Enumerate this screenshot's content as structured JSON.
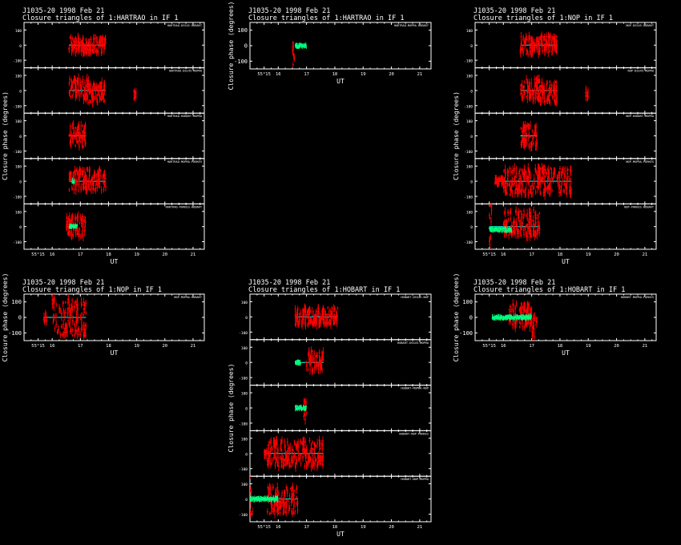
{
  "colors": {
    "background": "#000000",
    "axes": "#ffffff",
    "points": "#ff0000",
    "model": "#00ff7f",
    "zero_line": "#00ffff"
  },
  "chart_data": [
    {
      "id": "hartrao-1",
      "type": "scatter",
      "title_line1": "J1035-20  1998 Feb 21",
      "title_line2": "Closure triangles of 1:HARTRAO in IF 1",
      "xlabel": "UT",
      "ylabel": "Closure phase  (degrees)",
      "x_ticks": [
        {
          "pos": 15.5,
          "label": "55°15"
        },
        {
          "pos": 16,
          "label": "16"
        },
        {
          "pos": 17,
          "label": "17"
        },
        {
          "pos": 18,
          "label": "18"
        },
        {
          "pos": 19,
          "label": "19"
        },
        {
          "pos": 20,
          "label": "20"
        },
        {
          "pos": 21,
          "label": "21"
        }
      ],
      "xlim": [
        15.0,
        21.4
      ],
      "ylim": [
        -150,
        150
      ],
      "y_ticks": [
        100,
        0,
        -100
      ],
      "grid": false,
      "panels": [
        {
          "label": "HARTRAO-DSS45-HOBART",
          "segments": [
            [
              16.6,
              17.0,
              0.0,
              60
            ],
            [
              17.0,
              17.3,
              -5.0,
              50
            ],
            [
              17.3,
              17.9,
              5.0,
              55
            ]
          ],
          "model_segments": [],
          "zero_line": [
            16.6,
            17.9
          ]
        },
        {
          "label": "HARTRAO-DSS45-MOPRA",
          "segments": [
            [
              16.6,
              17.3,
              10.0,
              70
            ],
            [
              17.3,
              17.9,
              -10.0,
              70
            ],
            [
              18.9,
              19.0,
              -30.0,
              40
            ]
          ],
          "model_segments": [],
          "zero_line": [
            16.6,
            17.9
          ]
        },
        {
          "label": "HARTRAO-HOBART-MOPRA",
          "segments": [
            [
              16.6,
              17.2,
              0.0,
              75
            ]
          ],
          "model_segments": [],
          "zero_line": [
            16.6,
            17.2
          ]
        },
        {
          "label": "HARTRAO-MOPRA-PARKES",
          "segments": [
            [
              16.6,
              17.9,
              10.0,
              70
            ]
          ],
          "model_segments": [
            [
              16.7,
              16.8,
              0.0,
              12
            ]
          ],
          "zero_line": [
            16.6,
            17.9
          ]
        },
        {
          "label": "HARTRAO-PARKES-HOBART",
          "segments": [
            [
              16.5,
              17.2,
              0.0,
              70
            ]
          ],
          "model_segments": [
            [
              16.6,
              16.9,
              0.0,
              12
            ]
          ],
          "zero_line": [
            16.6,
            16.9
          ]
        }
      ]
    },
    {
      "id": "hartrao-2",
      "type": "scatter",
      "title_line1": "J1035-20  1998 Feb 21",
      "title_line2": "Closure triangles of 1:HARTRAO in IF 1",
      "xlabel": "UT",
      "ylabel": "Closure phase  (degrees)",
      "x_ticks": [
        {
          "pos": 15.5,
          "label": "55°15"
        },
        {
          "pos": 16,
          "label": "16"
        },
        {
          "pos": 17,
          "label": "17"
        },
        {
          "pos": 18,
          "label": "18"
        },
        {
          "pos": 19,
          "label": "19"
        },
        {
          "pos": 20,
          "label": "20"
        },
        {
          "pos": 21,
          "label": "21"
        }
      ],
      "xlim": [
        15.0,
        21.4
      ],
      "ylim": [
        -150,
        150
      ],
      "y_ticks": [
        100,
        0,
        -100
      ],
      "grid": false,
      "panels": [
        {
          "label": "HARTRAO-MOPRA-HOBART",
          "segments": [
            [
              16.5,
              16.6,
              -60.0,
              80
            ]
          ],
          "model_segments": [
            [
              16.6,
              17.0,
              0.0,
              12
            ]
          ],
          "zero_line": [
            16.6,
            17.0
          ]
        }
      ]
    },
    {
      "id": "nop-1",
      "type": "scatter",
      "title_line1": "J1035-20  1998 Feb 21",
      "title_line2": "Closure triangles of 1:NOP in IF 1",
      "xlabel": "UT",
      "ylabel": "Closure phase  (degrees)",
      "x_ticks": [
        {
          "pos": 15.5,
          "label": "55°15"
        },
        {
          "pos": 16,
          "label": "16"
        },
        {
          "pos": 17,
          "label": "17"
        },
        {
          "pos": 18,
          "label": "18"
        },
        {
          "pos": 19,
          "label": "19"
        },
        {
          "pos": 20,
          "label": "20"
        },
        {
          "pos": 21,
          "label": "21"
        }
      ],
      "xlim": [
        15.0,
        21.4
      ],
      "ylim": [
        -150,
        150
      ],
      "y_ticks": [
        100,
        0,
        -100
      ],
      "grid": false,
      "panels": [
        {
          "label": "NOP-DSS45-HOBART",
          "segments": [
            [
              16.6,
              17.0,
              0.0,
              60
            ],
            [
              17.0,
              17.3,
              -5.0,
              50
            ],
            [
              17.3,
              17.9,
              5.0,
              55
            ]
          ],
          "model_segments": [],
          "zero_line": [
            16.6,
            17.9
          ]
        },
        {
          "label": "NOP-DSS45-MOPRA",
          "segments": [
            [
              16.6,
              17.3,
              10.0,
              70
            ],
            [
              17.3,
              17.9,
              -10.0,
              70
            ],
            [
              18.9,
              19.0,
              -30.0,
              40
            ]
          ],
          "model_segments": [],
          "zero_line": [
            16.6,
            17.9
          ]
        },
        {
          "label": "NOP-HOBART-MOPRA",
          "segments": [
            [
              16.6,
              17.2,
              0.0,
              75
            ]
          ],
          "model_segments": [],
          "zero_line": [
            16.6,
            17.2
          ]
        },
        {
          "label": "NOP-MOPRA-PARKES",
          "segments": [
            [
              15.7,
              16.0,
              0.0,
              20
            ],
            [
              16.0,
              18.4,
              0.0,
              90
            ]
          ],
          "model_segments": [],
          "zero_line": [
            15.7,
            18.4
          ]
        },
        {
          "label": "NOP-PARKES-HOBART",
          "segments": [
            [
              15.5,
              15.6,
              0.0,
              150
            ],
            [
              16.0,
              17.3,
              20.0,
              90
            ]
          ],
          "model_segments": [
            [
              15.5,
              16.3,
              -20.0,
              14
            ]
          ],
          "zero_line": [
            15.5,
            17.3
          ]
        }
      ]
    },
    {
      "id": "nop-2",
      "type": "scatter",
      "title_line1": "J1035-20  1998 Feb 21",
      "title_line2": "Closure triangles of 1:NOP in IF 1",
      "xlabel": "UT",
      "ylabel": "Closure phase  (degrees)",
      "x_ticks": [
        {
          "pos": 15.5,
          "label": "55°15"
        },
        {
          "pos": 16,
          "label": "16"
        },
        {
          "pos": 17,
          "label": "17"
        },
        {
          "pos": 18,
          "label": "18"
        },
        {
          "pos": 19,
          "label": "19"
        },
        {
          "pos": 20,
          "label": "20"
        },
        {
          "pos": 21,
          "label": "21"
        }
      ],
      "xlim": [
        15.0,
        21.4
      ],
      "ylim": [
        -150,
        150
      ],
      "y_ticks": [
        100,
        0,
        -100
      ],
      "grid": false,
      "panels": [
        {
          "label": "NOP-MOPRA-HOBART",
          "segments": [
            [
              15.7,
              15.8,
              0.0,
              30
            ],
            [
              16.0,
              17.2,
              0.0,
              120
            ]
          ],
          "model_segments": [],
          "zero_line": [
            15.7,
            17.2
          ]
        }
      ]
    },
    {
      "id": "hobart-1",
      "type": "scatter",
      "title_line1": "J1035-20  1998 Feb 21",
      "title_line2": "Closure triangles of 1:HOBART in IF 1",
      "xlabel": "UT",
      "ylabel": "Closure phase  (degrees)",
      "x_ticks": [
        {
          "pos": 15.5,
          "label": "55°15"
        },
        {
          "pos": 16,
          "label": "16"
        },
        {
          "pos": 17,
          "label": "17"
        },
        {
          "pos": 18,
          "label": "18"
        },
        {
          "pos": 19,
          "label": "19"
        },
        {
          "pos": 20,
          "label": "20"
        },
        {
          "pos": 21,
          "label": "21"
        }
      ],
      "xlim": [
        15.0,
        21.4
      ],
      "ylim": [
        -150,
        150
      ],
      "y_ticks": [
        100,
        0,
        -100
      ],
      "grid": false,
      "panels": [
        {
          "label": "HOBART-DSS45-NOP",
          "segments": [
            [
              16.6,
              17.0,
              0.0,
              60
            ],
            [
              17.0,
              17.3,
              -5.0,
              50
            ],
            [
              17.3,
              18.1,
              5.0,
              55
            ]
          ],
          "model_segments": [],
          "zero_line": [
            16.6,
            18.1
          ]
        },
        {
          "label": "HOBART-DSS45-MOPRA",
          "segments": [
            [
              17.0,
              17.6,
              10.0,
              70
            ]
          ],
          "model_segments": [
            [
              16.6,
              16.8,
              0.0,
              12
            ]
          ],
          "zero_line": [
            16.6,
            17.6
          ]
        },
        {
          "label": "HOBART-MOPRA-NOP",
          "segments": [
            [
              16.9,
              17.0,
              -10.0,
              70
            ]
          ],
          "model_segments": [
            [
              16.6,
              17.0,
              0.0,
              12
            ]
          ],
          "zero_line": [
            16.6,
            17.0
          ]
        },
        {
          "label": "HOBART-NOP-PARKES",
          "segments": [
            [
              15.5,
              15.6,
              0.0,
              20
            ],
            [
              15.6,
              17.6,
              0.0,
              90
            ]
          ],
          "model_segments": [],
          "zero_line": [
            15.5,
            17.6
          ]
        },
        {
          "label": "HOBART-NOP-MOPRA",
          "segments": [
            [
              15.0,
              15.1,
              0.0,
              150
            ],
            [
              15.6,
              16.7,
              -10.0,
              90
            ]
          ],
          "model_segments": [
            [
              15.0,
              16.0,
              0.0,
              14
            ]
          ],
          "zero_line": [
            15.0,
            16.7
          ]
        }
      ]
    },
    {
      "id": "hobart-2",
      "type": "scatter",
      "title_line1": "J1035-20  1998 Feb 21",
      "title_line2": "Closure triangles of 1:HOBART in IF 1",
      "xlabel": "UT",
      "ylabel": "Closure phase  (degrees)",
      "x_ticks": [
        {
          "pos": 15.5,
          "label": "55°15"
        },
        {
          "pos": 16,
          "label": "16"
        },
        {
          "pos": 17,
          "label": "17"
        },
        {
          "pos": 18,
          "label": "18"
        },
        {
          "pos": 19,
          "label": "19"
        },
        {
          "pos": 20,
          "label": "20"
        },
        {
          "pos": 21,
          "label": "21"
        }
      ],
      "xlim": [
        15.0,
        21.4
      ],
      "ylim": [
        -150,
        150
      ],
      "y_ticks": [
        100,
        0,
        -100
      ],
      "grid": false,
      "panels": [
        {
          "label": "HOBART-MOPRA-PARKES",
          "segments": [
            [
              16.2,
              17.0,
              10.0,
              80
            ],
            [
              17.0,
              17.2,
              -60.0,
              70
            ]
          ],
          "model_segments": [
            [
              15.6,
              17.0,
              0.0,
              12
            ]
          ],
          "zero_line": [
            15.6,
            17.0
          ]
        }
      ]
    }
  ]
}
